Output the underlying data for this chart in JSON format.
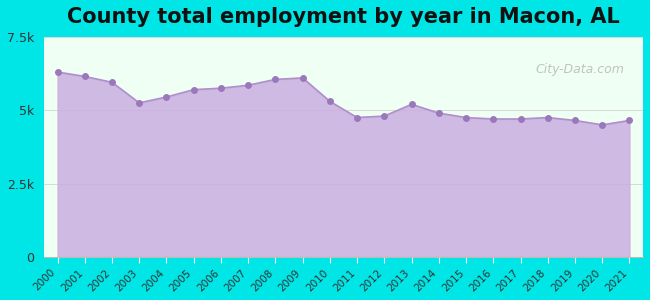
{
  "title": "County total employment by year in Macon, AL",
  "title_fontsize": 15,
  "title_fontweight": "bold",
  "background_color": "#00e5e5",
  "plot_bg_color": "#f0fff4",
  "area_fill_color": "#c9aee0",
  "area_fill_alpha": 0.85,
  "line_color": "#b090cc",
  "marker_color": "#9a78bb",
  "marker_size": 16,
  "years": [
    2000,
    2001,
    2002,
    2003,
    2004,
    2005,
    2006,
    2007,
    2008,
    2009,
    2010,
    2011,
    2012,
    2013,
    2014,
    2015,
    2016,
    2017,
    2018,
    2019,
    2020,
    2021
  ],
  "values": [
    6300,
    6150,
    5950,
    5250,
    5450,
    5700,
    5750,
    5850,
    6050,
    6100,
    5300,
    4750,
    4800,
    5200,
    4900,
    4750,
    4700,
    4700,
    4750,
    4650,
    4500,
    4650
  ],
  "ylim": [
    0,
    7500
  ],
  "yticks": [
    0,
    2500,
    5000,
    7500
  ],
  "ytick_labels": [
    "0",
    "2.5k",
    "5k",
    "7.5k"
  ],
  "watermark_text": "City-Data.com",
  "left_bar_color": "#c5f5c5",
  "xlabel": "",
  "ylabel": ""
}
